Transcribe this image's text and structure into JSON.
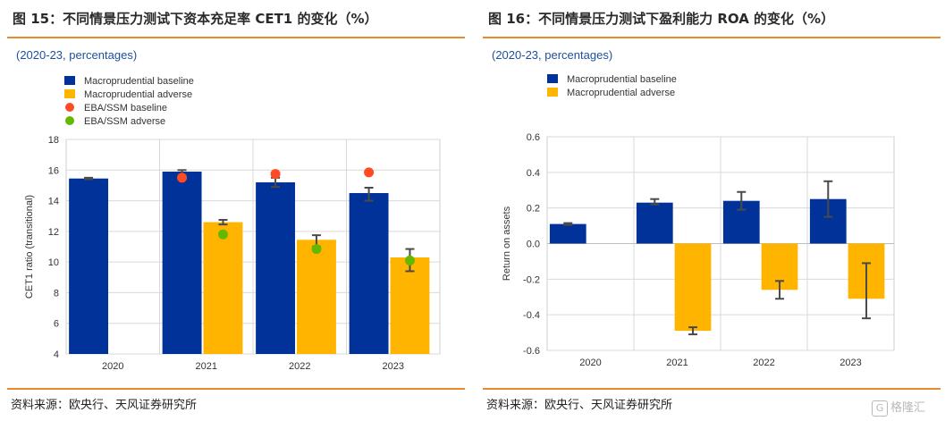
{
  "colors": {
    "baseline": "#003299",
    "adverse": "#ffb400",
    "eba_baseline": "#ff4b23",
    "eba_adverse": "#65b800",
    "rule": "#e98a2c",
    "error_bar": "#4a4a4a"
  },
  "left": {
    "title": "图 15：不同情景压力测试下资本充足率 CET1 的变化（%）",
    "subtitle": "(2020-23, percentages)",
    "source": "资料来源：欧央行、天风证券研究所"
  },
  "right": {
    "title": "图 16：不同情景压力测试下盈利能力 ROA 的变化（%）",
    "subtitle": "(2020-23, percentages)",
    "source": "资料来源：欧央行、天风证券研究所"
  },
  "watermark": "格隆汇",
  "chart_data": [
    {
      "type": "bar",
      "categories": [
        "2020",
        "2021",
        "2022",
        "2023"
      ],
      "ylabel": "CET1 ratio (transitional)",
      "ylim": [
        4,
        18
      ],
      "yticks": [
        "4",
        "6",
        "8",
        "10",
        "12",
        "14",
        "16",
        "18"
      ],
      "grid": true,
      "legend": "top-left",
      "series": [
        {
          "name": "Macroprudential baseline",
          "kind": "bar",
          "values": [
            15.45,
            15.9,
            15.2,
            14.5
          ],
          "err_low": [
            15.4,
            15.7,
            14.9,
            14.0
          ],
          "err_high": [
            15.5,
            16.0,
            15.5,
            14.85
          ]
        },
        {
          "name": "Macroprudential adverse",
          "kind": "bar",
          "values": [
            null,
            12.6,
            11.45,
            10.3
          ],
          "err_low": [
            null,
            12.45,
            11.0,
            9.4
          ],
          "err_high": [
            null,
            12.75,
            11.75,
            10.85
          ]
        },
        {
          "name": "EBA/SSM baseline",
          "kind": "point",
          "values": [
            null,
            15.5,
            15.75,
            15.85
          ]
        },
        {
          "name": "EBA/SSM adverse",
          "kind": "point",
          "values": [
            null,
            11.8,
            10.85,
            10.1
          ]
        }
      ]
    },
    {
      "type": "bar",
      "categories": [
        "2020",
        "2021",
        "2022",
        "2023"
      ],
      "ylabel": "Return on assets",
      "ylim": [
        -0.6,
        0.6
      ],
      "yticks": [
        "-0.6",
        "-0.4",
        "-0.2",
        "0.0",
        "0.2",
        "0.4",
        "0.6"
      ],
      "grid": true,
      "legend": "top-left",
      "series": [
        {
          "name": "Macroprudential baseline",
          "kind": "bar",
          "values": [
            0.11,
            0.23,
            0.24,
            0.25
          ],
          "err_low": [
            0.105,
            0.22,
            0.19,
            0.15
          ],
          "err_high": [
            0.115,
            0.25,
            0.29,
            0.35
          ]
        },
        {
          "name": "Macroprudential adverse",
          "kind": "bar",
          "values": [
            null,
            -0.49,
            -0.26,
            -0.31
          ],
          "err_low": [
            null,
            -0.51,
            -0.31,
            -0.42
          ],
          "err_high": [
            null,
            -0.47,
            -0.21,
            -0.11
          ]
        }
      ]
    }
  ]
}
